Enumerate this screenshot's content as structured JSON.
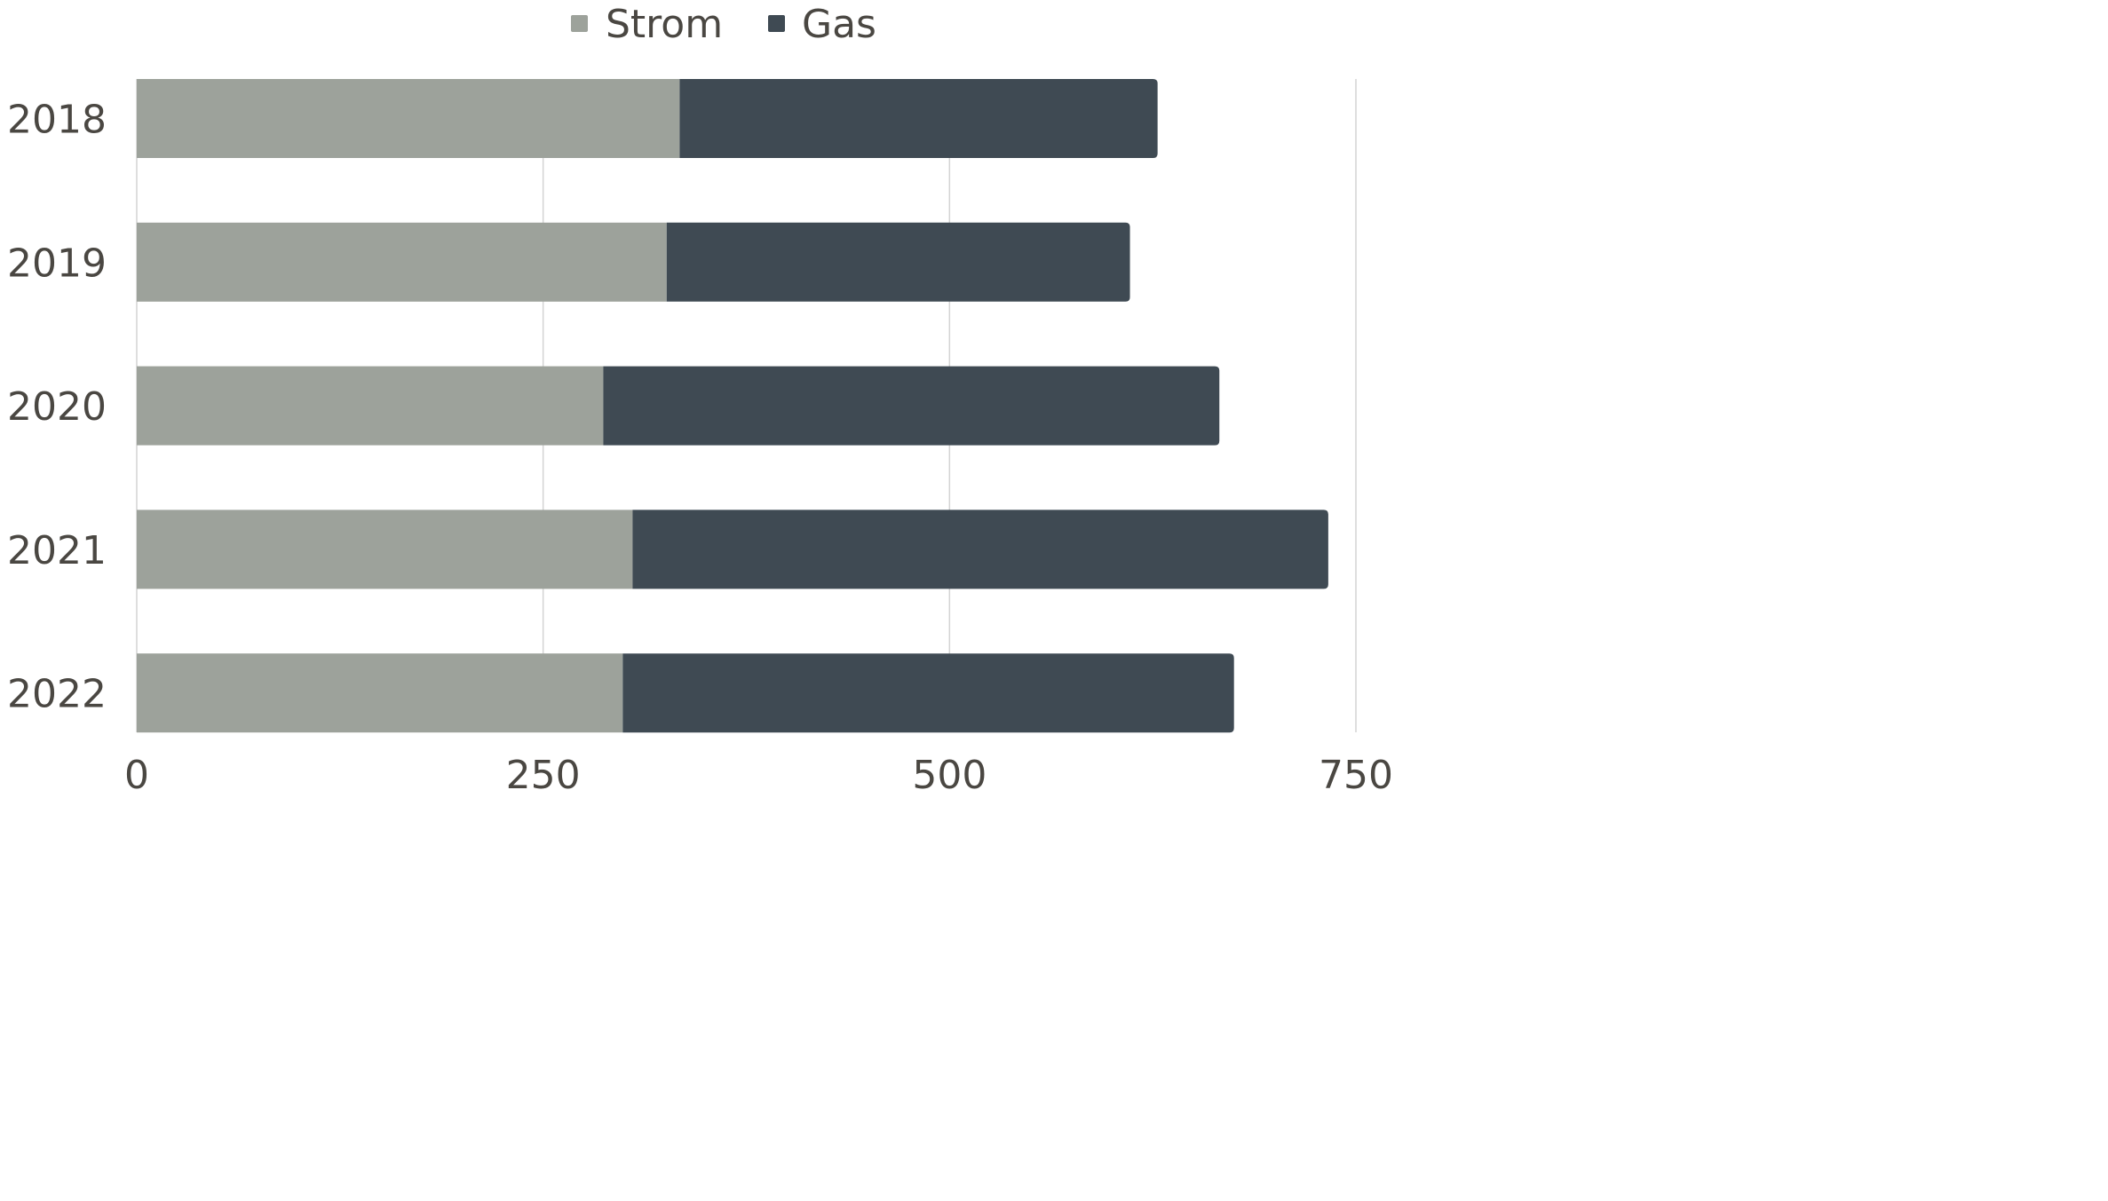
{
  "chart_data": {
    "type": "bar",
    "orientation": "horizontal",
    "stacked": true,
    "categories": [
      "2018",
      "2019",
      "2020",
      "2021",
      "2022"
    ],
    "series": [
      {
        "name": "Strom",
        "values": [
          334,
          326,
          287,
          305,
          299
        ],
        "color": "#9da29b"
      },
      {
        "name": "Gas",
        "values": [
          294,
          285,
          379,
          428,
          376
        ],
        "color": "#3f4a53"
      }
    ],
    "xlim": [
      0,
      750
    ],
    "xticks": [
      "0",
      "250",
      "500",
      "750"
    ],
    "title": "",
    "xlabel": "",
    "ylabel": "",
    "grid": true,
    "legend_position": "top-center"
  }
}
